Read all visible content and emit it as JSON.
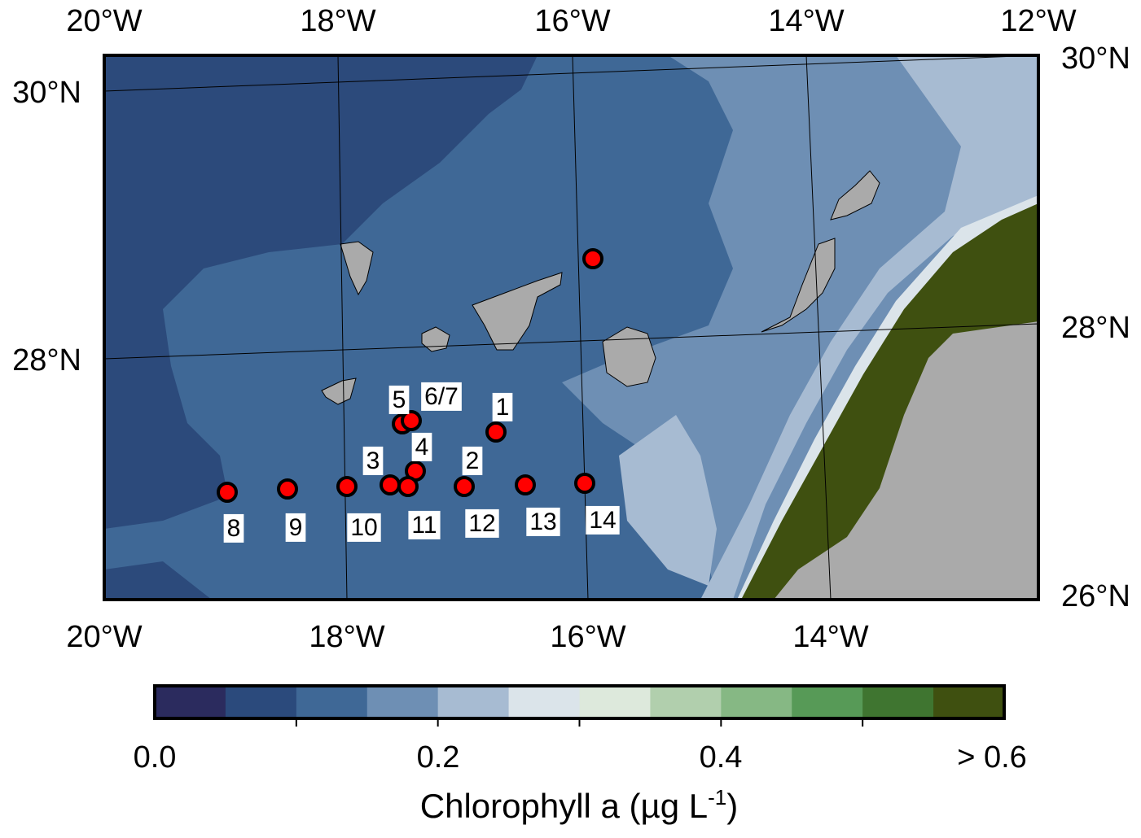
{
  "map": {
    "top_labels": [
      "20°W",
      "18°W",
      "16°W",
      "14°W",
      "12°W"
    ],
    "bottom_labels": [
      "20°W",
      "18°W",
      "16°W",
      "14°W"
    ],
    "left_labels": [
      "30°N",
      "28°N"
    ],
    "right_labels": [
      "30°N",
      "28°N",
      "26°N"
    ],
    "stations": [
      "1",
      "2",
      "3",
      "4",
      "5",
      "6/7",
      "8",
      "9",
      "10",
      "11",
      "12",
      "13",
      "14"
    ]
  },
  "colorbar": {
    "colors": [
      "#2b2b5e",
      "#2b4a7c",
      "#3f6896",
      "#6e8fb4",
      "#a7bbd2",
      "#dbe4ea",
      "#dde9dc",
      "#b1cfad",
      "#86b884",
      "#579a57",
      "#3f7530",
      "#3f5010"
    ],
    "tick_labels": [
      "0.0",
      "0.2",
      "0.4",
      "> 0.6"
    ],
    "title": "Chlorophyll a (µg L",
    "title_superscript": "-1",
    "title_end": ")"
  }
}
